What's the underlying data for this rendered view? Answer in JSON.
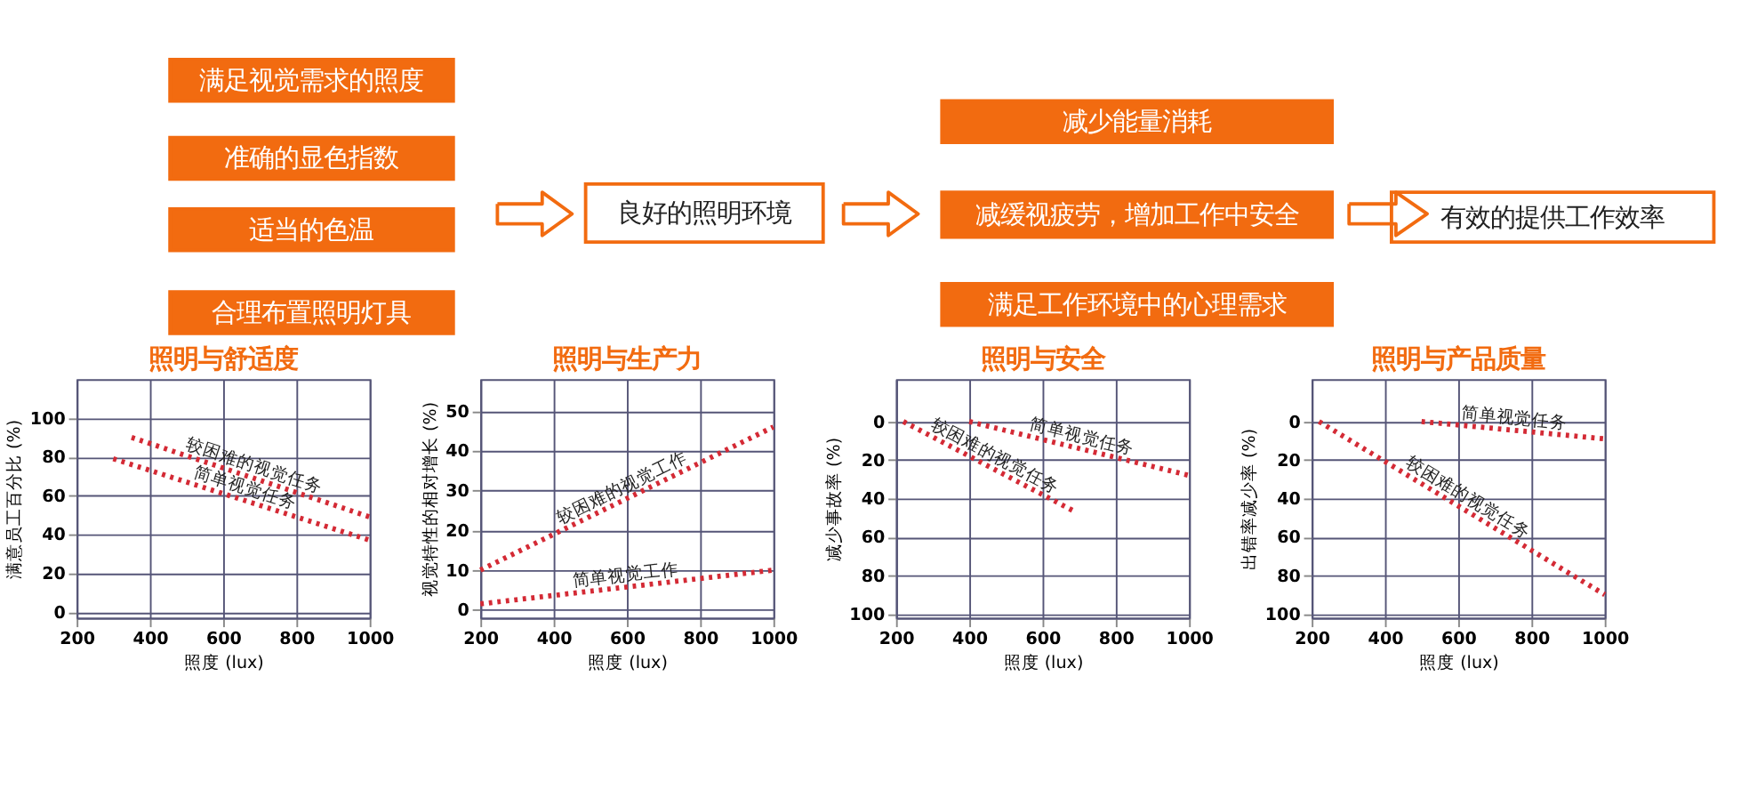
{
  "chart_data": [
    {
      "type": "other",
      "annotations": [
        "满足视觉需求的照度",
        "准确的显色指数",
        "适当的色温",
        "合理布置照明灯具",
        "良好的照明环境",
        "减少能量消耗",
        "减缓视疲劳，增加工作中安全",
        "满足工作环境中的心理需求",
        "有效的提供工作效率"
      ],
      "colors": [
        "#f26b10",
        "#f26b10",
        "#f26b10",
        "#f26b10",
        "#ffffff",
        "#f26b10",
        "#f26b10",
        "#f26b10",
        "#ffffff"
      ]
    },
    {
      "type": "line",
      "title": "照明与舒适度",
      "xlabel": "照度 (lux)",
      "ylabel": "满意员工百分比 (%)",
      "xlim": [
        200,
        1000
      ],
      "xticks": [
        200,
        400,
        600,
        800,
        1000
      ],
      "ylim": [
        -3,
        120
      ],
      "yticks": [
        0,
        20,
        40,
        60,
        80,
        100
      ],
      "grid": true,
      "line_style": "dotted",
      "series": [
        {
          "name": "较困难的视觉任务",
          "color": "#d42a35",
          "x": [
            350,
            1000
          ],
          "values": [
            90,
            49
          ]
        },
        {
          "name": "简单视觉任务",
          "color": "#d42a35",
          "x": [
            300,
            1000
          ],
          "values": [
            79,
            37
          ]
        }
      ]
    },
    {
      "type": "line",
      "title": "照明与生产力",
      "xlabel": "照度 (lux)",
      "ylabel": "视觉特性的相对增长 (%)",
      "xlim": [
        200,
        1000
      ],
      "xticks": [
        200,
        400,
        600,
        800,
        1000
      ],
      "ylim": [
        -2,
        58
      ],
      "yticks": [
        0,
        10,
        20,
        30,
        40,
        50
      ],
      "grid": true,
      "line_style": "dotted",
      "series": [
        {
          "name": "较困难的视觉工作",
          "color": "#d42a35",
          "x": [
            200,
            1000
          ],
          "values": [
            10,
            46
          ]
        },
        {
          "name": "简单视觉工作",
          "color": "#d42a35",
          "x": [
            200,
            1000
          ],
          "values": [
            1.5,
            10
          ]
        }
      ]
    },
    {
      "type": "line",
      "title": "照明与安全",
      "xlabel": "照度 (lux)",
      "ylabel": "减少事故率 (%)",
      "xlim": [
        200,
        1000
      ],
      "xticks": [
        200,
        400,
        600,
        800,
        1000
      ],
      "ylim": [
        102,
        -22
      ],
      "yticks": [
        0,
        20,
        40,
        60,
        80,
        100
      ],
      "grid": true,
      "line_style": "dotted",
      "series": [
        {
          "name": "简单视觉任务",
          "color": "#d42a35",
          "x": [
            400,
            1000
          ],
          "values": [
            0,
            28
          ]
        },
        {
          "name": "较困难的视觉任务",
          "color": "#d42a35",
          "x": [
            220,
            690
          ],
          "values": [
            0,
            47
          ]
        }
      ]
    },
    {
      "type": "line",
      "title": "照明与产品质量",
      "xlabel": "照度 (lux)",
      "ylabel": "出错率减少率 (%)",
      "xlim": [
        200,
        1000
      ],
      "xticks": [
        200,
        400,
        600,
        800,
        1000
      ],
      "ylim": [
        102,
        -22
      ],
      "yticks": [
        0,
        20,
        40,
        60,
        80,
        100
      ],
      "grid": true,
      "line_style": "dotted",
      "series": [
        {
          "name": "简单视觉任务",
          "color": "#d42a35",
          "x": [
            500,
            1000
          ],
          "values": [
            0,
            9
          ]
        },
        {
          "name": "较困难的视觉任务",
          "color": "#d42a35",
          "x": [
            220,
            1000
          ],
          "values": [
            0,
            90
          ]
        }
      ]
    }
  ]
}
